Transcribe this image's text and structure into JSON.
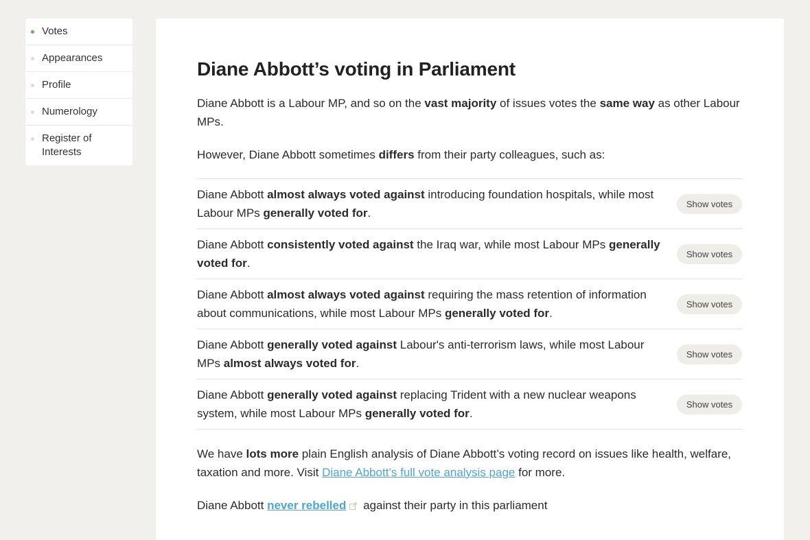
{
  "sidebar": {
    "items": [
      {
        "label": "Votes",
        "active": true
      },
      {
        "label": "Appearances",
        "active": false
      },
      {
        "label": "Profile",
        "active": false
      },
      {
        "label": "Numerology",
        "active": false
      },
      {
        "label": "Register of Interests",
        "active": false
      }
    ]
  },
  "main": {
    "title": "Diane Abbott’s voting in Parliament",
    "intro": {
      "t1": "Diane Abbott is a Labour MP, and so on the ",
      "b1": "vast majority",
      "t2": " of issues votes the ",
      "b2": "same way",
      "t3": " as other Labour MPs."
    },
    "differs": {
      "t1": "However, Diane Abbott sometimes ",
      "b1": "differs",
      "t2": " from their party colleagues, such as:"
    },
    "policies": [
      {
        "pre": "Diane Abbott ",
        "stance": "almost always voted against",
        "mid": " introducing foundation hospitals, while most Labour MPs ",
        "party": "generally voted for",
        "end": ".",
        "button": "Show votes"
      },
      {
        "pre": "Diane Abbott ",
        "stance": "consistently voted against",
        "mid": " the Iraq war, while most Labour MPs ",
        "party": "generally voted for",
        "end": ".",
        "button": "Show votes"
      },
      {
        "pre": "Diane Abbott ",
        "stance": "almost always voted against",
        "mid": " requiring the mass retention of information about communications, while most Labour MPs ",
        "party": "generally voted for",
        "end": ".",
        "button": "Show votes"
      },
      {
        "pre": "Diane Abbott ",
        "stance": "generally voted against",
        "mid": " Labour's anti-terrorism laws, while most Labour MPs ",
        "party": "almost always voted for",
        "end": ".",
        "button": "Show votes"
      },
      {
        "pre": "Diane Abbott ",
        "stance": "generally voted against",
        "mid": " replacing Trident with a new nuclear weapons system, while most Labour MPs ",
        "party": "generally voted for",
        "end": ".",
        "button": "Show votes"
      }
    ],
    "more": {
      "t1": "We have ",
      "b1": "lots more",
      "t2": " plain English analysis of Diane Abbott’s voting record on issues like health, welfare, taxation and more. Visit ",
      "link": "Diane Abbott’s full vote analysis page",
      "t3": " for more."
    },
    "rebel": {
      "t1": "Diane Abbott ",
      "link": "never rebelled",
      "t2": " against their party in this parliament",
      "icon": "external-link-icon"
    }
  },
  "colors": {
    "page_bg": "#f1f0ec",
    "active_dot": "#62b356",
    "link": "#4fa3d7",
    "button_bg": "#efede8"
  }
}
